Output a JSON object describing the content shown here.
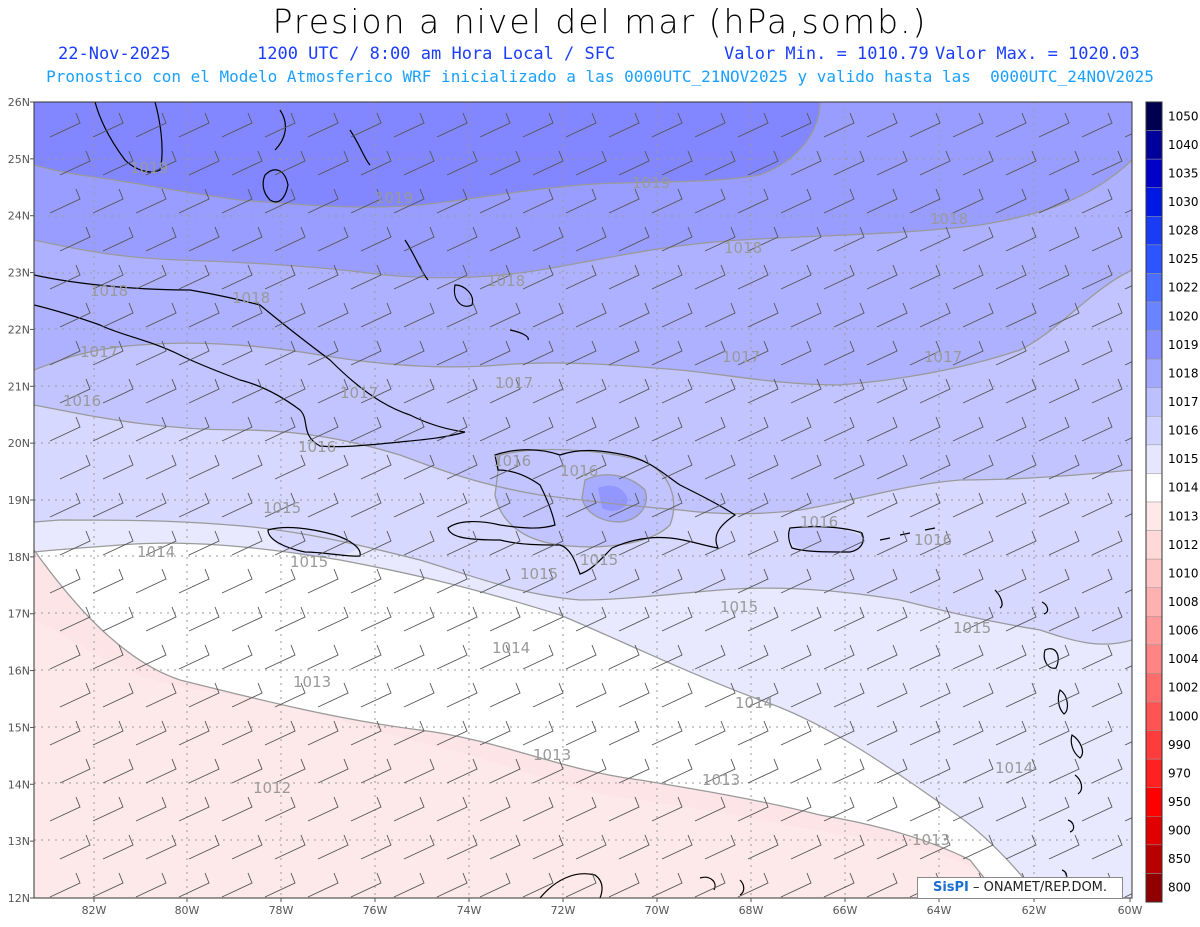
{
  "header": {
    "title": "Presion a nivel del mar (hPa,somb.)",
    "date": "22-Nov-2025",
    "time": "1200 UTC / 8:00 am Hora Local / SFC",
    "min_label": "Valor Min. = 1010.79",
    "max_label": "Valor Max. = 1020.03",
    "subtitle": "Pronostico con el Modelo Atmosferico WRF inicializado a las 0000UTC_21NOV2025 y valido hasta las  0000UTC_24NOV2025"
  },
  "map": {
    "lat_labels": [
      "26N",
      "25N",
      "24N",
      "23N",
      "22N",
      "21N",
      "20N",
      "19N",
      "18N",
      "17N",
      "16N",
      "15N",
      "14N",
      "13N",
      "12N"
    ],
    "lon_labels": [
      "82W",
      "80W",
      "78W",
      "76W",
      "74W",
      "72W",
      "70W",
      "68W",
      "66W",
      "64W",
      "62W",
      "60W"
    ],
    "contour_labels": [
      {
        "text": "1019"
      },
      {
        "text": "1019"
      },
      {
        "text": "1019"
      },
      {
        "text": "1018"
      },
      {
        "text": "1018"
      },
      {
        "text": "1018"
      },
      {
        "text": "1018"
      },
      {
        "text": "1018"
      },
      {
        "text": "1017"
      },
      {
        "text": "1017"
      },
      {
        "text": "1017"
      },
      {
        "text": "1017"
      },
      {
        "text": "1017"
      },
      {
        "text": "1016"
      },
      {
        "text": "1016"
      },
      {
        "text": "1016"
      },
      {
        "text": "1016"
      },
      {
        "text": "1016"
      },
      {
        "text": "1016"
      },
      {
        "text": "1015"
      },
      {
        "text": "1015"
      },
      {
        "text": "1015"
      },
      {
        "text": "1015"
      },
      {
        "text": "1015"
      },
      {
        "text": "1015"
      },
      {
        "text": "1014"
      },
      {
        "text": "1014"
      },
      {
        "text": "1014"
      },
      {
        "text": "1014"
      },
      {
        "text": "1013"
      },
      {
        "text": "1013"
      },
      {
        "text": "1013"
      },
      {
        "text": "1013"
      },
      {
        "text": "1012"
      }
    ]
  },
  "colorbar": {
    "entries": [
      {
        "label": "1050",
        "color": "#000050"
      },
      {
        "label": "1040",
        "color": "#00009a"
      },
      {
        "label": "1035",
        "color": "#0000c8"
      },
      {
        "label": "1030",
        "color": "#0018e6"
      },
      {
        "label": "1028",
        "color": "#1a3cf5"
      },
      {
        "label": "1025",
        "color": "#2d55ff"
      },
      {
        "label": "1022",
        "color": "#4a6eff"
      },
      {
        "label": "1020",
        "color": "#6a84ff"
      },
      {
        "label": "1019",
        "color": "#8890ff"
      },
      {
        "label": "1018",
        "color": "#a3a8ff"
      },
      {
        "label": "1017",
        "color": "#bcc0ff"
      },
      {
        "label": "1016",
        "color": "#d0d2ff"
      },
      {
        "label": "1015",
        "color": "#e6e7ff"
      },
      {
        "label": "1014",
        "color": "#ffffff"
      },
      {
        "label": "1013",
        "color": "#ffe8e8"
      },
      {
        "label": "1012",
        "color": "#ffd8d8"
      },
      {
        "label": "1010",
        "color": "#ffc4c4"
      },
      {
        "label": "1008",
        "color": "#ffb0b0"
      },
      {
        "label": "1006",
        "color": "#ff9a9a"
      },
      {
        "label": "1004",
        "color": "#ff8484"
      },
      {
        "label": "1002",
        "color": "#ff6c6c"
      },
      {
        "label": "1000",
        "color": "#ff5454"
      },
      {
        "label": "990",
        "color": "#ff3c3c"
      },
      {
        "label": "970",
        "color": "#ff2020"
      },
      {
        "label": "950",
        "color": "#ff0000"
      },
      {
        "label": "900",
        "color": "#e00000"
      },
      {
        "label": "850",
        "color": "#b80000"
      },
      {
        "label": "800",
        "color": "#900000"
      }
    ]
  },
  "watermark": {
    "brand": "SisPI",
    "text": "– ONAMET/REP.DOM."
  }
}
